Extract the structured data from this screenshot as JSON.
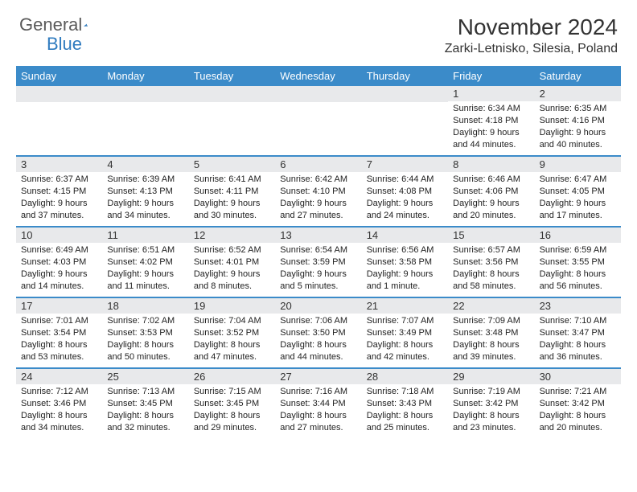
{
  "logo": {
    "text1": "General",
    "text2": "Blue"
  },
  "header": {
    "title": "November 2024",
    "location": "Zarki-Letnisko, Silesia, Poland"
  },
  "colors": {
    "header_bar": "#3b8bc9",
    "daynum_bg": "#e8e9eb",
    "border": "#3b8bc9",
    "logo_gray": "#5a5a5a",
    "logo_blue": "#2f7bbf",
    "text": "#222222"
  },
  "daynames": [
    "Sunday",
    "Monday",
    "Tuesday",
    "Wednesday",
    "Thursday",
    "Friday",
    "Saturday"
  ],
  "weeks": [
    [
      {
        "n": "",
        "sr": "",
        "ss": "",
        "dl": ""
      },
      {
        "n": "",
        "sr": "",
        "ss": "",
        "dl": ""
      },
      {
        "n": "",
        "sr": "",
        "ss": "",
        "dl": ""
      },
      {
        "n": "",
        "sr": "",
        "ss": "",
        "dl": ""
      },
      {
        "n": "",
        "sr": "",
        "ss": "",
        "dl": ""
      },
      {
        "n": "1",
        "sr": "Sunrise: 6:34 AM",
        "ss": "Sunset: 4:18 PM",
        "dl": "Daylight: 9 hours and 44 minutes."
      },
      {
        "n": "2",
        "sr": "Sunrise: 6:35 AM",
        "ss": "Sunset: 4:16 PM",
        "dl": "Daylight: 9 hours and 40 minutes."
      }
    ],
    [
      {
        "n": "3",
        "sr": "Sunrise: 6:37 AM",
        "ss": "Sunset: 4:15 PM",
        "dl": "Daylight: 9 hours and 37 minutes."
      },
      {
        "n": "4",
        "sr": "Sunrise: 6:39 AM",
        "ss": "Sunset: 4:13 PM",
        "dl": "Daylight: 9 hours and 34 minutes."
      },
      {
        "n": "5",
        "sr": "Sunrise: 6:41 AM",
        "ss": "Sunset: 4:11 PM",
        "dl": "Daylight: 9 hours and 30 minutes."
      },
      {
        "n": "6",
        "sr": "Sunrise: 6:42 AM",
        "ss": "Sunset: 4:10 PM",
        "dl": "Daylight: 9 hours and 27 minutes."
      },
      {
        "n": "7",
        "sr": "Sunrise: 6:44 AM",
        "ss": "Sunset: 4:08 PM",
        "dl": "Daylight: 9 hours and 24 minutes."
      },
      {
        "n": "8",
        "sr": "Sunrise: 6:46 AM",
        "ss": "Sunset: 4:06 PM",
        "dl": "Daylight: 9 hours and 20 minutes."
      },
      {
        "n": "9",
        "sr": "Sunrise: 6:47 AM",
        "ss": "Sunset: 4:05 PM",
        "dl": "Daylight: 9 hours and 17 minutes."
      }
    ],
    [
      {
        "n": "10",
        "sr": "Sunrise: 6:49 AM",
        "ss": "Sunset: 4:03 PM",
        "dl": "Daylight: 9 hours and 14 minutes."
      },
      {
        "n": "11",
        "sr": "Sunrise: 6:51 AM",
        "ss": "Sunset: 4:02 PM",
        "dl": "Daylight: 9 hours and 11 minutes."
      },
      {
        "n": "12",
        "sr": "Sunrise: 6:52 AM",
        "ss": "Sunset: 4:01 PM",
        "dl": "Daylight: 9 hours and 8 minutes."
      },
      {
        "n": "13",
        "sr": "Sunrise: 6:54 AM",
        "ss": "Sunset: 3:59 PM",
        "dl": "Daylight: 9 hours and 5 minutes."
      },
      {
        "n": "14",
        "sr": "Sunrise: 6:56 AM",
        "ss": "Sunset: 3:58 PM",
        "dl": "Daylight: 9 hours and 1 minute."
      },
      {
        "n": "15",
        "sr": "Sunrise: 6:57 AM",
        "ss": "Sunset: 3:56 PM",
        "dl": "Daylight: 8 hours and 58 minutes."
      },
      {
        "n": "16",
        "sr": "Sunrise: 6:59 AM",
        "ss": "Sunset: 3:55 PM",
        "dl": "Daylight: 8 hours and 56 minutes."
      }
    ],
    [
      {
        "n": "17",
        "sr": "Sunrise: 7:01 AM",
        "ss": "Sunset: 3:54 PM",
        "dl": "Daylight: 8 hours and 53 minutes."
      },
      {
        "n": "18",
        "sr": "Sunrise: 7:02 AM",
        "ss": "Sunset: 3:53 PM",
        "dl": "Daylight: 8 hours and 50 minutes."
      },
      {
        "n": "19",
        "sr": "Sunrise: 7:04 AM",
        "ss": "Sunset: 3:52 PM",
        "dl": "Daylight: 8 hours and 47 minutes."
      },
      {
        "n": "20",
        "sr": "Sunrise: 7:06 AM",
        "ss": "Sunset: 3:50 PM",
        "dl": "Daylight: 8 hours and 44 minutes."
      },
      {
        "n": "21",
        "sr": "Sunrise: 7:07 AM",
        "ss": "Sunset: 3:49 PM",
        "dl": "Daylight: 8 hours and 42 minutes."
      },
      {
        "n": "22",
        "sr": "Sunrise: 7:09 AM",
        "ss": "Sunset: 3:48 PM",
        "dl": "Daylight: 8 hours and 39 minutes."
      },
      {
        "n": "23",
        "sr": "Sunrise: 7:10 AM",
        "ss": "Sunset: 3:47 PM",
        "dl": "Daylight: 8 hours and 36 minutes."
      }
    ],
    [
      {
        "n": "24",
        "sr": "Sunrise: 7:12 AM",
        "ss": "Sunset: 3:46 PM",
        "dl": "Daylight: 8 hours and 34 minutes."
      },
      {
        "n": "25",
        "sr": "Sunrise: 7:13 AM",
        "ss": "Sunset: 3:45 PM",
        "dl": "Daylight: 8 hours and 32 minutes."
      },
      {
        "n": "26",
        "sr": "Sunrise: 7:15 AM",
        "ss": "Sunset: 3:45 PM",
        "dl": "Daylight: 8 hours and 29 minutes."
      },
      {
        "n": "27",
        "sr": "Sunrise: 7:16 AM",
        "ss": "Sunset: 3:44 PM",
        "dl": "Daylight: 8 hours and 27 minutes."
      },
      {
        "n": "28",
        "sr": "Sunrise: 7:18 AM",
        "ss": "Sunset: 3:43 PM",
        "dl": "Daylight: 8 hours and 25 minutes."
      },
      {
        "n": "29",
        "sr": "Sunrise: 7:19 AM",
        "ss": "Sunset: 3:42 PM",
        "dl": "Daylight: 8 hours and 23 minutes."
      },
      {
        "n": "30",
        "sr": "Sunrise: 7:21 AM",
        "ss": "Sunset: 3:42 PM",
        "dl": "Daylight: 8 hours and 20 minutes."
      }
    ]
  ]
}
